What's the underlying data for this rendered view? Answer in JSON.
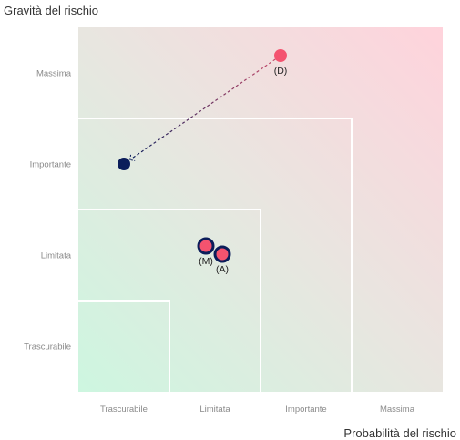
{
  "chart_data": {
    "type": "scatter",
    "ylabel": "Gravità del rischio",
    "xlabel": "Probabilità del rischio",
    "x_categories": [
      "Trascurabile",
      "Limitata",
      "Importante",
      "Massima"
    ],
    "y_categories": [
      "Trascurabile",
      "Limitata",
      "Importante",
      "Massima"
    ],
    "xlim": [
      0,
      4
    ],
    "ylim": [
      0,
      4
    ],
    "grid": false,
    "background": "gradient green (bottom-left) to red (top-right)",
    "zones": [
      1,
      2,
      3
    ],
    "points": [
      {
        "label": "(D)",
        "x": 2.22,
        "y": 3.69,
        "color": "#f4536f",
        "outline": "none"
      },
      {
        "label": "",
        "x": 0.5,
        "y": 2.5,
        "color": "#0b1d5a",
        "outline": "none"
      },
      {
        "label": "(M)",
        "x": 1.4,
        "y": 1.6,
        "color": "#f4536f",
        "outline": "#0b1d5a"
      },
      {
        "label": "(A)",
        "x": 1.58,
        "y": 1.51,
        "color": "#f4536f",
        "outline": "#0b1d5a"
      }
    ],
    "arrows": [
      {
        "from": "(D)",
        "to_x": 0.5,
        "to_y": 2.5,
        "style": "dashed"
      }
    ]
  }
}
